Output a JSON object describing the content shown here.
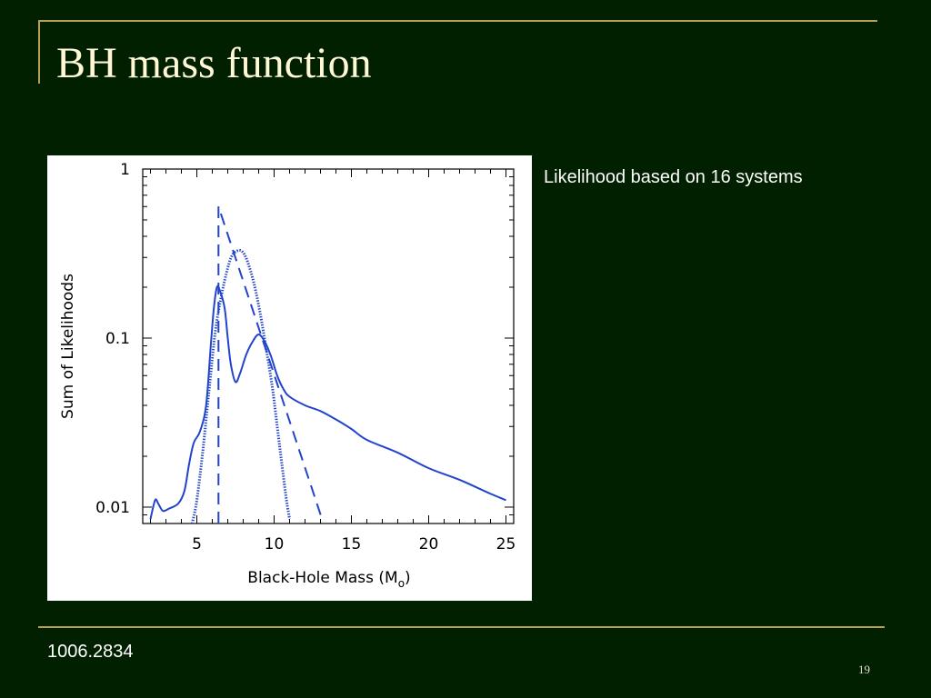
{
  "slide": {
    "title": "BH mass function",
    "caption": "Likelihood based on 16 systems",
    "reference": "1006.2834",
    "page_number": "19"
  },
  "colors": {
    "background": "#002000",
    "rule": "#b9a055",
    "title": "#fff7d6",
    "curve": "#2244cc"
  },
  "chart_data": {
    "type": "line",
    "xlabel": "Black-Hole Mass (M",
    "xlabel_subscript": "o",
    "xlabel_close": ")",
    "ylabel": "Sum of Likelihoods",
    "xlim": [
      1.5,
      25.5
    ],
    "ylim": [
      0.008,
      1.0
    ],
    "yscale": "log",
    "x_ticks": [
      5,
      10,
      15,
      20,
      25
    ],
    "x_tick_labels": [
      "5",
      "10",
      "15",
      "20",
      "25"
    ],
    "y_ticks": [
      0.01,
      0.1,
      1
    ],
    "y_tick_labels": [
      "0.01",
      "0.1",
      "1"
    ],
    "grid": false,
    "series": [
      {
        "style": "solid",
        "x": [
          2.0,
          2.3,
          2.5,
          2.8,
          3.2,
          3.8,
          4.2,
          4.5,
          4.8,
          5.2,
          5.6,
          5.9,
          6.1,
          6.3,
          6.5,
          6.8,
          7.0,
          7.2,
          7.5,
          7.8,
          8.2,
          8.6,
          9.0,
          9.4,
          9.8,
          10.2,
          10.6,
          11.0,
          12.0,
          13.0,
          14.0,
          15.0,
          16.0,
          18.0,
          20.0,
          22.0,
          24.0,
          25.0
        ],
        "y": [
          0.0085,
          0.011,
          0.0105,
          0.0095,
          0.0098,
          0.0105,
          0.0125,
          0.018,
          0.024,
          0.028,
          0.04,
          0.09,
          0.15,
          0.2,
          0.19,
          0.15,
          0.1,
          0.07,
          0.055,
          0.062,
          0.08,
          0.095,
          0.105,
          0.095,
          0.078,
          0.06,
          0.05,
          0.045,
          0.04,
          0.037,
          0.033,
          0.029,
          0.025,
          0.021,
          0.017,
          0.0145,
          0.012,
          0.011
        ]
      },
      {
        "style": "dashed",
        "x": [
          6.4,
          6.4,
          13.1
        ],
        "y": [
          0.008,
          0.6,
          0.0085
        ]
      },
      {
        "style": "dotted",
        "x": [
          4.7,
          5.0,
          5.4,
          5.8,
          6.2,
          6.6,
          7.0,
          7.3,
          7.7,
          8.0,
          8.3,
          8.7,
          9.1,
          9.5,
          9.9,
          10.2,
          10.5,
          10.8,
          11.0
        ],
        "y": [
          0.008,
          0.011,
          0.022,
          0.05,
          0.11,
          0.18,
          0.26,
          0.31,
          0.33,
          0.32,
          0.28,
          0.21,
          0.14,
          0.085,
          0.05,
          0.03,
          0.018,
          0.011,
          0.0085
        ]
      }
    ]
  }
}
